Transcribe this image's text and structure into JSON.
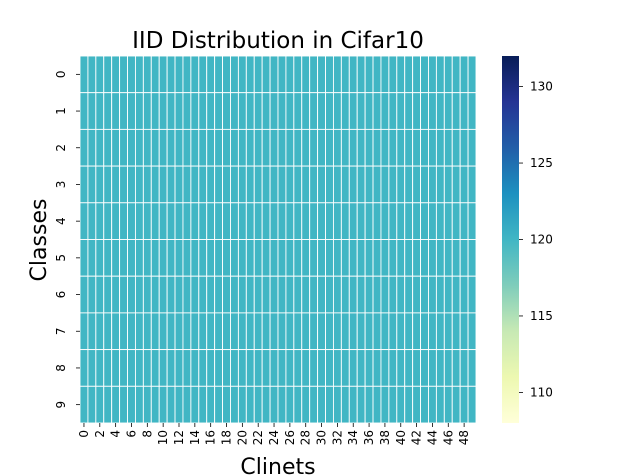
{
  "chart_data": {
    "type": "heatmap",
    "title": "IID Distribution in Cifar10",
    "xlabel": "Clinets",
    "ylabel": "Classes",
    "x_tick_labels": [
      "0",
      "2",
      "4",
      "6",
      "8",
      "10",
      "12",
      "14",
      "16",
      "18",
      "20",
      "22",
      "24",
      "26",
      "28",
      "30",
      "32",
      "34",
      "36",
      "38",
      "40",
      "42",
      "44",
      "46",
      "48"
    ],
    "y_tick_labels": [
      "0",
      "1",
      "2",
      "3",
      "4",
      "5",
      "6",
      "7",
      "8",
      "9"
    ],
    "n_columns": 50,
    "n_rows": 10,
    "cell_value": 120,
    "colorbar": {
      "ticks": [
        "110",
        "115",
        "120",
        "125",
        "130"
      ],
      "range": [
        108,
        132
      ],
      "colormap": "YlGnBu",
      "low_color": "#ffffd9",
      "high_color": "#081d58"
    },
    "cell_color": "#41b6c4",
    "grid": "white lines between cells"
  }
}
